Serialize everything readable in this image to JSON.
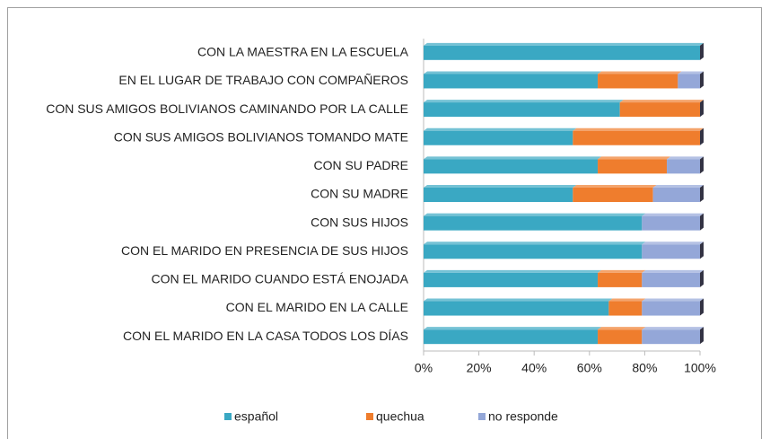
{
  "chart_data": {
    "type": "stacked_bar_horizontal",
    "categories": [
      "CON LA MAESTRA EN LA ESCUELA",
      "EN EL LUGAR DE TRABAJO CON COMPAÑEROS",
      "CON SUS AMIGOS BOLIVIANOS CAMINANDO POR LA CALLE",
      "CON SUS AMIGOS BOLIVIANOS TOMANDO MATE",
      "CON SU PADRE",
      "CON SU MADRE",
      "CON SUS HIJOS",
      "CON EL MARIDO EN PRESENCIA DE SUS HIJOS",
      "CON EL MARIDO CUANDO ESTÁ ENOJADA",
      "CON EL MARIDO EN LA CALLE",
      "CON EL MARIDO EN LA CASA TODOS LOS DÍAS"
    ],
    "series": [
      {
        "name": "español",
        "color": "#3aa8c3",
        "values": [
          100,
          63,
          71,
          54,
          63,
          54,
          79,
          79,
          63,
          67,
          63
        ]
      },
      {
        "name": "quechua",
        "color": "#ef7d2d",
        "values": [
          0,
          29,
          29,
          46,
          25,
          29,
          0,
          0,
          16,
          12,
          16
        ]
      },
      {
        "name": "no responde",
        "color": "#94a7d8",
        "values": [
          0,
          8,
          0,
          0,
          12,
          17,
          21,
          21,
          21,
          21,
          21
        ]
      }
    ],
    "xlim": [
      0,
      100
    ],
    "xticks": [
      {
        "value": 0,
        "label": "0%"
      },
      {
        "value": 20,
        "label": "20%"
      },
      {
        "value": 40,
        "label": "40%"
      },
      {
        "value": 60,
        "label": "60%"
      },
      {
        "value": 80,
        "label": "80%"
      },
      {
        "value": 100,
        "label": "100%"
      }
    ],
    "legend": "bottom"
  }
}
